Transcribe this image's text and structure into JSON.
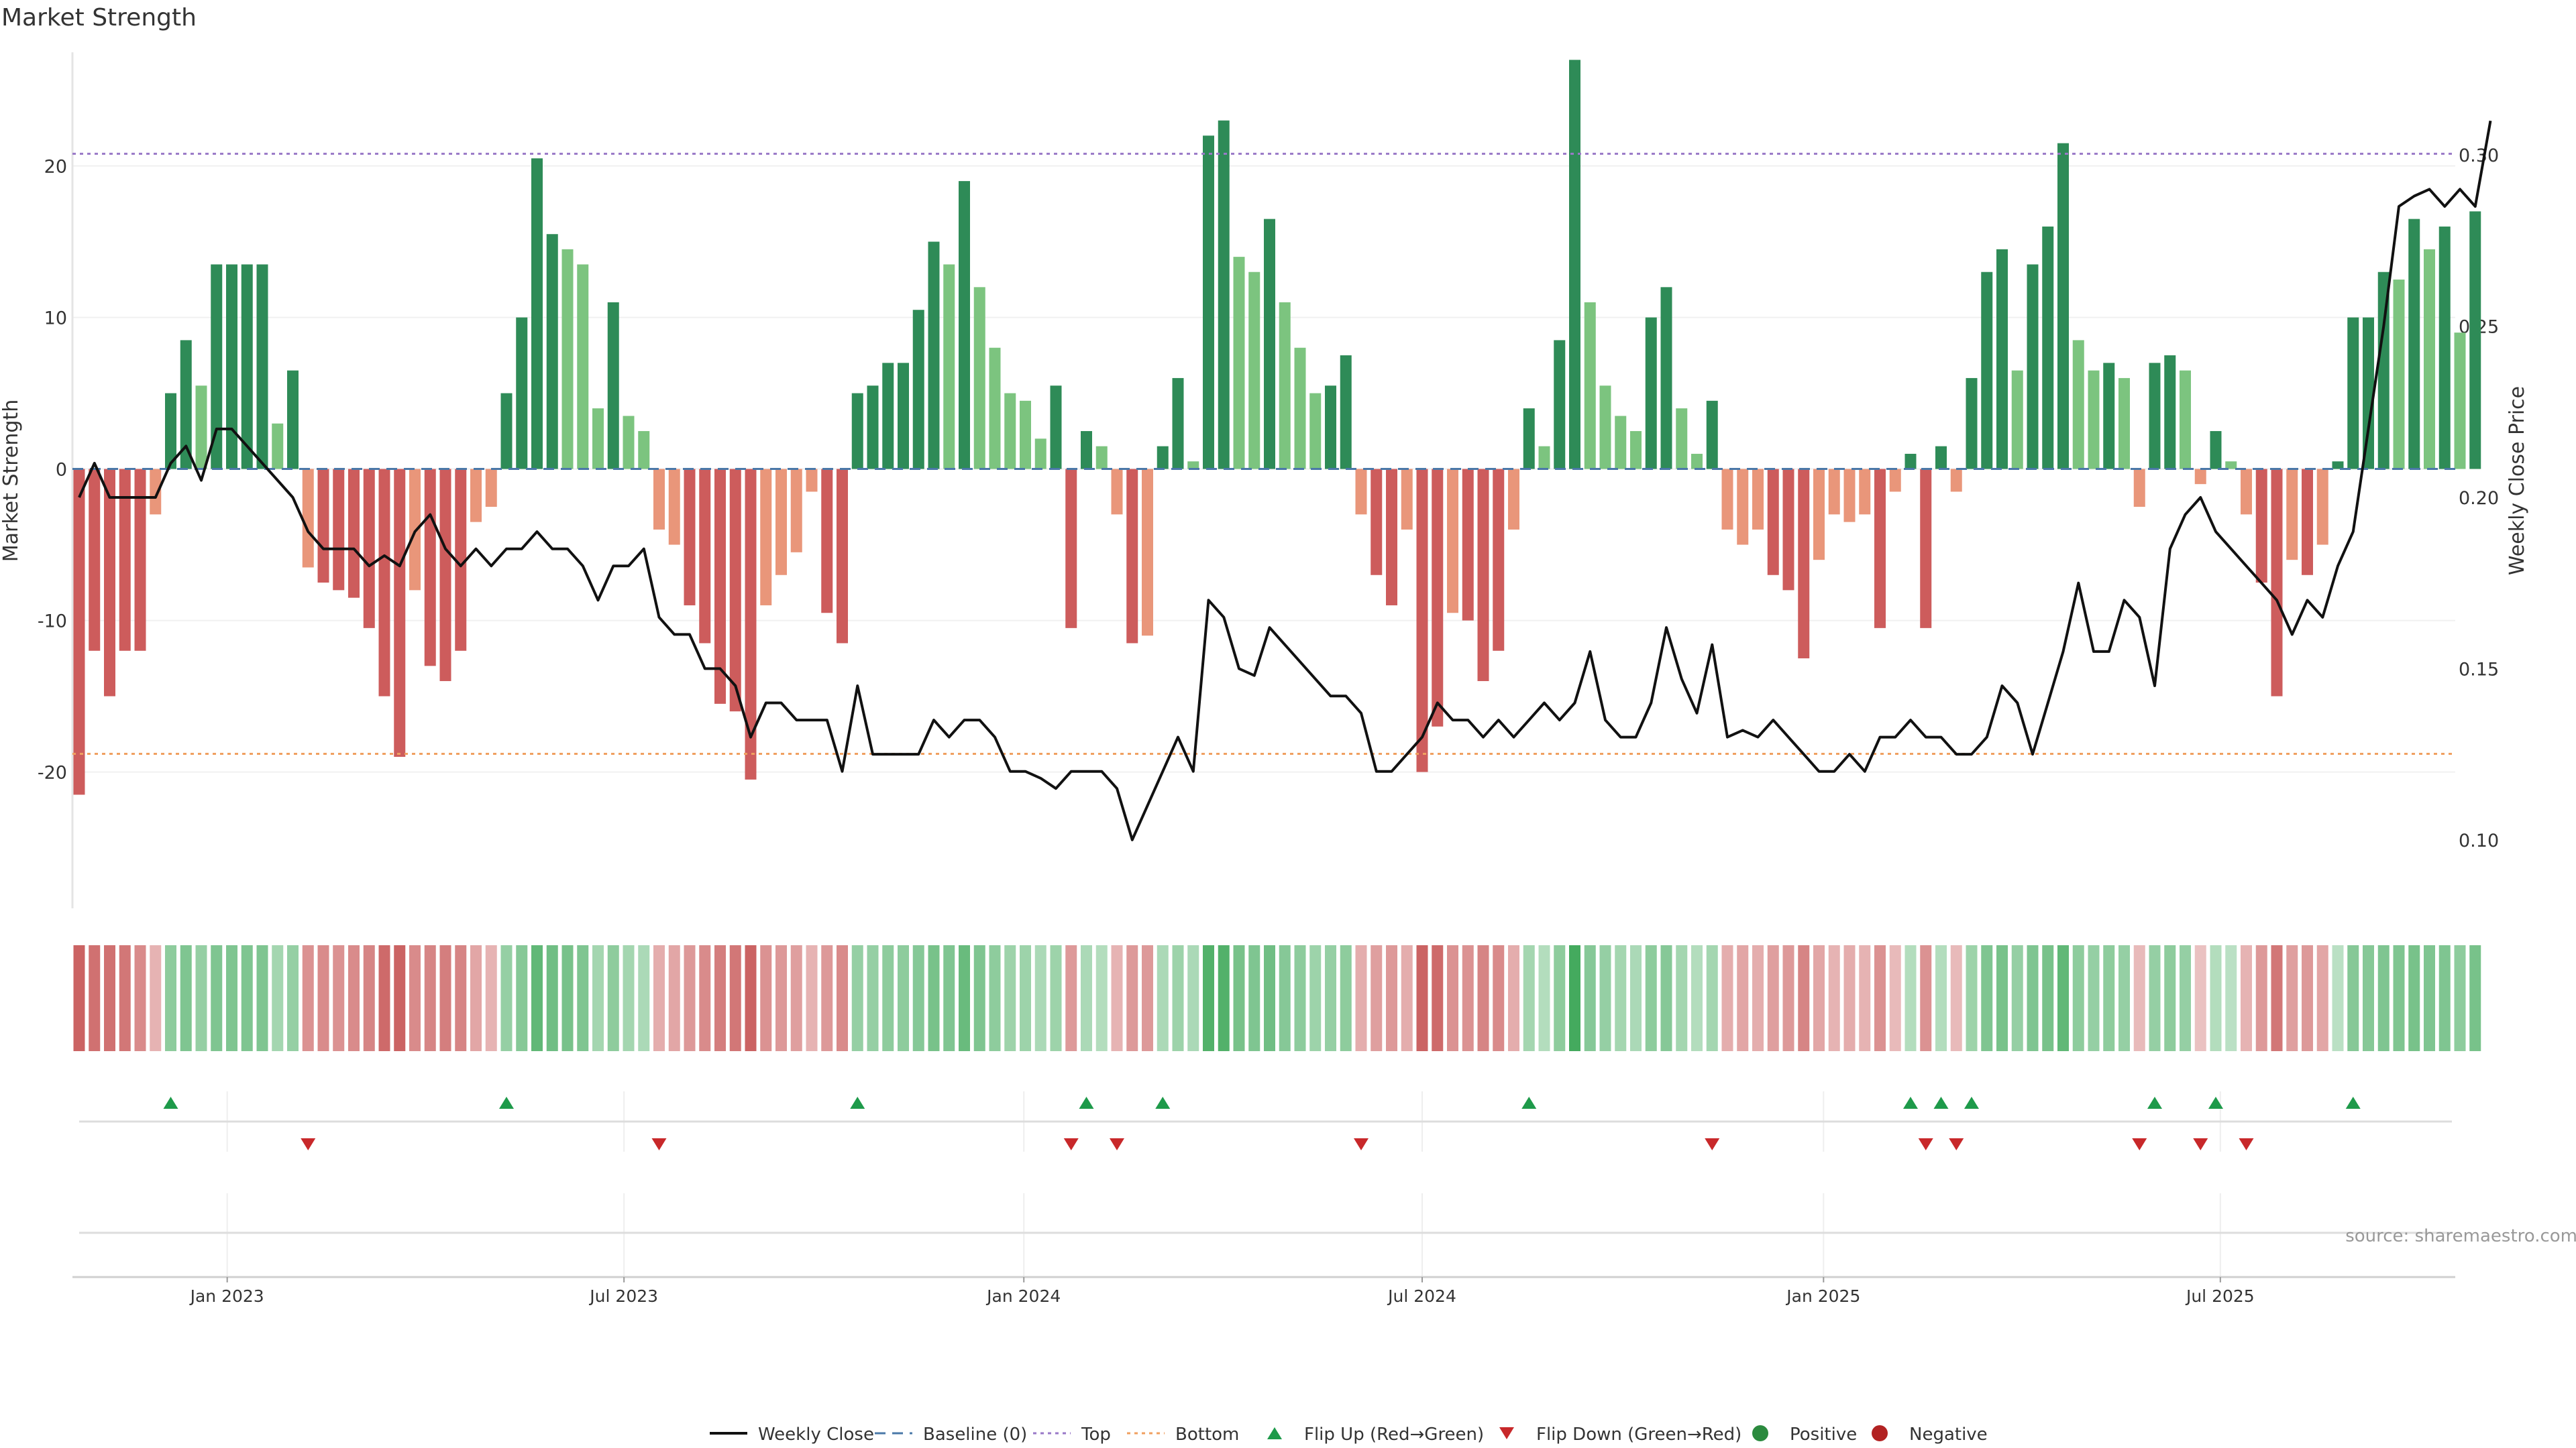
{
  "chart_data": {
    "type": "bar",
    "title": "Market Strength",
    "ylabel": "Market Strength",
    "y2label": "Weekly Close Price",
    "ylim": [
      -29,
      27.5
    ],
    "y2lim": [
      0.08,
      0.33
    ],
    "yticks": [
      -20,
      -10,
      0,
      10,
      20
    ],
    "y2ticks": [
      0.1,
      0.15,
      0.2,
      0.25,
      0.3
    ],
    "y2ticklabels": [
      "0.10",
      "0.15",
      "0.20",
      "0.25",
      "0.30"
    ],
    "date_ticks": [
      {
        "label": "Jan 2023",
        "week": 9.7
      },
      {
        "label": "Jul 2023",
        "week": 35.7
      },
      {
        "label": "Jan 2024",
        "week": 61.9
      },
      {
        "label": "Jul 2024",
        "week": 88.0
      },
      {
        "label": "Jan 2025",
        "week": 114.3
      },
      {
        "label": "Jul 2025",
        "week": 140.3
      }
    ],
    "top_level": 20.8,
    "bottom_level": -18.8,
    "strength": [
      -21.5,
      -12,
      -15,
      -12,
      -12,
      -3,
      5,
      8.5,
      5.5,
      13.5,
      13.5,
      13.5,
      13.5,
      3,
      6.5,
      -6.5,
      -7.5,
      -8,
      -8.5,
      -10.5,
      -15,
      -19,
      -8,
      -13,
      -14,
      -12,
      -3.5,
      -2.5,
      5,
      10,
      20.5,
      15.5,
      14.5,
      13.5,
      4,
      11,
      3.5,
      2.5,
      -4,
      -5,
      -9,
      -11.5,
      -15.5,
      -16,
      -20.5,
      -9,
      -7,
      -5.5,
      -1.5,
      -9.5,
      -11.5,
      5,
      5.5,
      7,
      7,
      10.5,
      15,
      13.5,
      19,
      12,
      8,
      5,
      4.5,
      2,
      5.5,
      -10.5,
      2.5,
      1.5,
      -3,
      -11.5,
      -11,
      1.5,
      6,
      0.5,
      22,
      23,
      14,
      13,
      16.5,
      11,
      8,
      5,
      5.5,
      7.5,
      -3,
      -7,
      -9,
      -4,
      -20,
      -17,
      -9.5,
      -10,
      -14,
      -12,
      -4,
      4,
      1.5,
      8.5,
      27,
      11,
      5.5,
      3.5,
      2.5,
      10,
      12,
      4,
      1,
      4.5,
      -4,
      -5,
      -4,
      -7,
      -8,
      -12.5,
      -6,
      -3,
      -3.5,
      -3,
      -10.5,
      -1.5,
      1,
      -10.5,
      1.5,
      -1.5,
      6,
      13,
      14.5,
      6.5,
      13.5,
      16,
      21.5,
      8.5,
      6.5,
      7,
      6,
      -2.5,
      7,
      7.5,
      6.5,
      -1,
      2.5,
      0.5,
      -3,
      -7.5,
      -15,
      -6,
      -7,
      -5,
      0.5,
      10,
      10,
      13,
      12.5,
      16.5,
      14.5,
      16,
      9,
      17
    ],
    "close": [
      0.2,
      0.21,
      0.2,
      0.2,
      0.2,
      0.2,
      0.21,
      0.215,
      0.205,
      0.22,
      0.22,
      0.215,
      0.21,
      0.205,
      0.2,
      0.19,
      0.185,
      0.185,
      0.185,
      0.18,
      0.183,
      0.18,
      0.19,
      0.195,
      0.185,
      0.18,
      0.185,
      0.18,
      0.185,
      0.185,
      0.19,
      0.185,
      0.185,
      0.18,
      0.17,
      0.18,
      0.18,
      0.185,
      0.165,
      0.16,
      0.16,
      0.15,
      0.15,
      0.145,
      0.13,
      0.14,
      0.14,
      0.135,
      0.135,
      0.135,
      0.12,
      0.145,
      0.125,
      0.125,
      0.125,
      0.125,
      0.135,
      0.13,
      0.135,
      0.135,
      0.13,
      0.12,
      0.12,
      0.118,
      0.115,
      0.12,
      0.12,
      0.12,
      0.115,
      0.1,
      0.11,
      0.12,
      0.13,
      0.12,
      0.17,
      0.165,
      0.15,
      0.148,
      0.162,
      0.157,
      0.152,
      0.147,
      0.142,
      0.142,
      0.137,
      0.12,
      0.12,
      0.125,
      0.13,
      0.14,
      0.135,
      0.135,
      0.13,
      0.135,
      0.13,
      0.135,
      0.14,
      0.135,
      0.14,
      0.155,
      0.135,
      0.13,
      0.13,
      0.14,
      0.162,
      0.147,
      0.137,
      0.157,
      0.13,
      0.132,
      0.13,
      0.135,
      0.13,
      0.125,
      0.12,
      0.12,
      0.125,
      0.12,
      0.13,
      0.13,
      0.135,
      0.13,
      0.13,
      0.125,
      0.125,
      0.13,
      0.145,
      0.14,
      0.125,
      0.14,
      0.155,
      0.175,
      0.155,
      0.155,
      0.17,
      0.165,
      0.145,
      0.185,
      0.195,
      0.2,
      0.19,
      0.185,
      0.18,
      0.175,
      0.17,
      0.16,
      0.17,
      0.165,
      0.18,
      0.19,
      0.22,
      0.25,
      0.285,
      0.288,
      0.29,
      0.285,
      0.29,
      0.285,
      0.31
    ],
    "heat": [
      0.9,
      0.8,
      0.8,
      0.75,
      0.6,
      0.3,
      0.5,
      0.6,
      0.45,
      0.6,
      0.6,
      0.6,
      0.6,
      0.35,
      0.45,
      0.55,
      0.6,
      0.55,
      0.6,
      0.65,
      0.85,
      0.9,
      0.6,
      0.65,
      0.7,
      0.65,
      0.4,
      0.3,
      0.45,
      0.55,
      0.8,
      0.7,
      0.65,
      0.6,
      0.35,
      0.5,
      0.35,
      0.3,
      0.35,
      0.4,
      0.5,
      0.6,
      0.7,
      0.75,
      0.9,
      0.55,
      0.5,
      0.45,
      0.3,
      0.5,
      0.6,
      0.45,
      0.45,
      0.5,
      0.5,
      0.55,
      0.65,
      0.6,
      0.75,
      0.6,
      0.5,
      0.4,
      0.4,
      0.3,
      0.4,
      0.5,
      0.3,
      0.25,
      0.3,
      0.5,
      0.5,
      0.3,
      0.4,
      0.3,
      0.9,
      0.9,
      0.65,
      0.6,
      0.7,
      0.55,
      0.5,
      0.4,
      0.45,
      0.5,
      0.35,
      0.45,
      0.5,
      0.35,
      0.9,
      0.85,
      0.55,
      0.55,
      0.65,
      0.6,
      0.35,
      0.35,
      0.25,
      0.5,
      1,
      0.55,
      0.45,
      0.35,
      0.3,
      0.5,
      0.55,
      0.35,
      0.25,
      0.35,
      0.35,
      0.4,
      0.35,
      0.45,
      0.5,
      0.65,
      0.4,
      0.3,
      0.35,
      0.3,
      0.55,
      0.25,
      0.25,
      0.55,
      0.25,
      0.25,
      0.4,
      0.6,
      0.65,
      0.45,
      0.6,
      0.65,
      0.8,
      0.5,
      0.45,
      0.5,
      0.45,
      0.25,
      0.45,
      0.5,
      0.45,
      0.2,
      0.25,
      0.2,
      0.3,
      0.5,
      0.75,
      0.45,
      0.5,
      0.4,
      0.2,
      0.55,
      0.55,
      0.6,
      0.6,
      0.65,
      0.6,
      0.6,
      0.5,
      0.65
    ],
    "flip_up": [
      6,
      28,
      51,
      66,
      71,
      95,
      120,
      122,
      124,
      136,
      140,
      149
    ],
    "flip_down": [
      15,
      38,
      65,
      68,
      84,
      107,
      121,
      123,
      135,
      139,
      142
    ],
    "legend": [
      {
        "label": "Weekly Close",
        "kind": "line",
        "color": "#111111"
      },
      {
        "label": "Baseline (0)",
        "kind": "dashed",
        "color": "#4a78a8"
      },
      {
        "label": "Top",
        "kind": "dotted",
        "color": "#9a79c8"
      },
      {
        "label": "Bottom",
        "kind": "dotted",
        "color": "#f0a060"
      },
      {
        "label": "Flip Up (Red→Green)",
        "kind": "tri-up",
        "color": "#1e9a4a"
      },
      {
        "label": "Flip Down (Green→Red)",
        "kind": "tri-down",
        "color": "#c8282a"
      },
      {
        "label": "Positive",
        "kind": "dot",
        "color": "#2b8a3e"
      },
      {
        "label": "Negative",
        "kind": "dot",
        "color": "#b22222"
      }
    ],
    "colors": {
      "strong_positive": "#2e8b57",
      "weak_positive": "#7cc47f",
      "strong_negative": "#cd5c5c",
      "weak_negative": "#e9967a",
      "heat_positive": "#3aa655",
      "heat_negative": "#c44d4d",
      "flip_up": "#1e9a4a",
      "flip_down": "#c8282a"
    }
  },
  "source": "source: sharemaestro.com"
}
